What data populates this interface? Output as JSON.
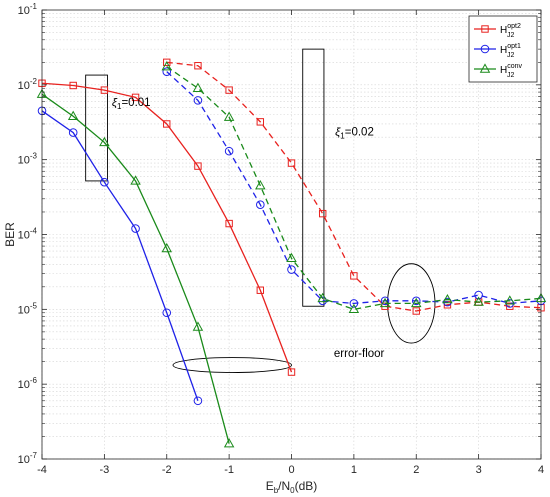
{
  "chart_data": {
    "type": "line",
    "title": "",
    "xlabel": {
      "main": "E",
      "sub1": "b",
      "mid": "/N",
      "sub2": "0",
      "tail": "(dB)"
    },
    "ylabel": "BER",
    "xlim": [
      -4,
      4
    ],
    "ylim": [
      1e-07,
      0.1
    ],
    "y_scale": "log",
    "grid": true,
    "legend_placement": "top-right",
    "x_ticks": [
      "-4",
      "-3",
      "-2",
      "-1",
      "0",
      "1",
      "2",
      "3",
      "4"
    ],
    "y_ticks": [
      {
        "base": "10",
        "exp": "-7"
      },
      {
        "base": "10",
        "exp": "-6"
      },
      {
        "base": "10",
        "exp": "-5"
      },
      {
        "base": "10",
        "exp": "-4"
      },
      {
        "base": "10",
        "exp": "-3"
      },
      {
        "base": "10",
        "exp": "-2"
      },
      {
        "base": "10",
        "exp": "-1"
      }
    ],
    "series": [
      {
        "key": "opt2_01",
        "legend": {
          "main": "H",
          "sup": "opt2",
          "sub": "J2"
        },
        "color": "#e8221f",
        "marker": "square",
        "dash": "solid",
        "x": [
          -4,
          -3.5,
          -3,
          -2.5,
          -2,
          -1.5,
          -1,
          -0.5,
          0
        ],
        "y": [
          0.0105,
          0.0098,
          0.0085,
          0.0068,
          0.003,
          0.00082,
          0.00014,
          1.8e-05,
          1.45e-06
        ]
      },
      {
        "key": "opt1_01",
        "legend": {
          "main": "H",
          "sup": "opt1",
          "sub": "J2"
        },
        "color": "#1f22e8",
        "marker": "circle",
        "dash": "solid",
        "x": [
          -4,
          -3.5,
          -3,
          -2.5,
          -2,
          -1.5
        ],
        "y": [
          0.0045,
          0.0023,
          0.0005,
          0.00012,
          9e-06,
          6e-07
        ]
      },
      {
        "key": "conv_01",
        "legend": {
          "main": "H",
          "sup": "conv",
          "sub": "J2"
        },
        "color": "#1a8a1a",
        "marker": "triangle",
        "dash": "solid",
        "x": [
          -4,
          -3.5,
          -3,
          -2.5,
          -2,
          -1.5,
          -1
        ],
        "y": [
          0.0075,
          0.0038,
          0.0017,
          0.00052,
          6.5e-05,
          5.8e-06,
          1.6e-07
        ]
      },
      {
        "key": "opt2_02",
        "color": "#e8221f",
        "marker": "square",
        "dash": "dashed",
        "x": [
          -2,
          -1.5,
          -1,
          -0.5,
          0,
          0.5,
          1,
          1.5,
          2,
          2.5,
          3,
          3.5,
          4
        ],
        "y": [
          0.02,
          0.018,
          0.0085,
          0.0032,
          0.0009,
          0.00019,
          2.8e-05,
          1.1e-05,
          9.5e-06,
          1.15e-05,
          1.25e-05,
          1.1e-05,
          1.05e-05
        ]
      },
      {
        "key": "opt1_02",
        "color": "#1f22e8",
        "marker": "circle",
        "dash": "dashed",
        "x": [
          -2,
          -1.5,
          -1,
          -0.5,
          0,
          0.5,
          1,
          1.5,
          2,
          2.5,
          3,
          3.5,
          4
        ],
        "y": [
          0.015,
          0.0062,
          0.0013,
          0.00025,
          3.4e-05,
          1.3e-05,
          1.2e-05,
          1.3e-05,
          1.3e-05,
          1.25e-05,
          1.55e-05,
          1.2e-05,
          1.3e-05
        ]
      },
      {
        "key": "conv_02",
        "color": "#1a8a1a",
        "marker": "triangle",
        "dash": "dashed",
        "x": [
          -2,
          -1.5,
          -1,
          -0.5,
          0,
          0.5,
          1,
          1.5,
          2,
          2.5,
          3,
          3.5,
          4
        ],
        "y": [
          0.0175,
          0.009,
          0.0037,
          0.00045,
          4.8e-05,
          1.4e-05,
          1e-05,
          1.2e-05,
          1.2e-05,
          1.35e-05,
          1.25e-05,
          1.3e-05,
          1.4e-05
        ]
      }
    ],
    "annotations": [
      {
        "key": "xi1",
        "symbol": "ξ",
        "sub": "1",
        "rest": "=0.01"
      },
      {
        "key": "xi2",
        "symbol": "ξ",
        "sub": "1",
        "rest": "=0.02"
      },
      {
        "key": "floor",
        "text": "error-floor"
      }
    ],
    "highlight_boxes": [
      {
        "x": [
          -3.3,
          -2.95
        ],
        "y": [
          0.0135,
          0.00052
        ]
      },
      {
        "x": [
          0.18,
          0.52
        ],
        "y": [
          0.03,
          1.1e-05
        ]
      }
    ],
    "highlight_ellipses": [
      {
        "cx": -0.95,
        "cy": 1.8e-06,
        "rx": 0.95,
        "ry_decades": 0.1
      },
      {
        "cx": 1.92,
        "cy": 1.2e-05,
        "rx": 0.38,
        "ry_decades": 0.53
      }
    ]
  }
}
